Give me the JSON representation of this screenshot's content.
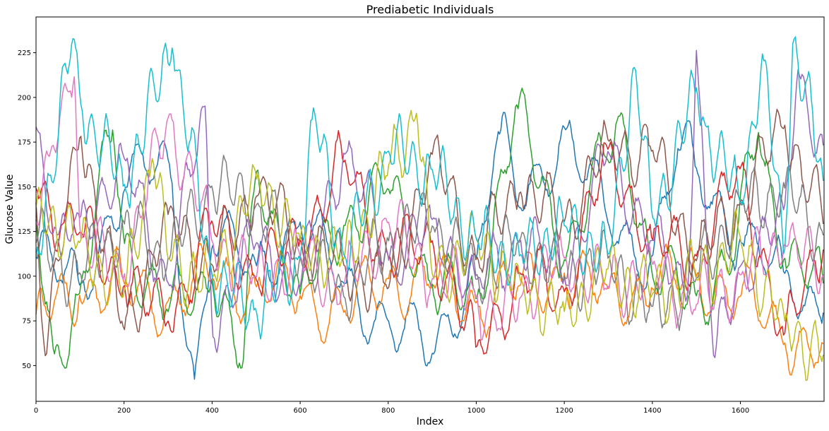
{
  "chart_data": {
    "type": "line",
    "title": "Prediabetic Individuals",
    "xlabel": "Index",
    "ylabel": "Glucose Value",
    "xlim": [
      0,
      1790
    ],
    "ylim": [
      30,
      245
    ],
    "xticks": [
      0,
      200,
      400,
      600,
      800,
      1000,
      1200,
      1400,
      1600
    ],
    "yticks": [
      50,
      75,
      100,
      125,
      150,
      175,
      200,
      225
    ],
    "grid": false,
    "legend": "none",
    "series_count": 10,
    "colors": [
      "#1f77b4",
      "#ff7f0e",
      "#2ca02c",
      "#d62728",
      "#9467bd",
      "#8c564b",
      "#e377c2",
      "#7f7f7f",
      "#bcbd22",
      "#17becf"
    ],
    "series_sampled": [
      {
        "x": [
          0,
          100,
          200,
          300,
          360,
          400,
          500,
          600,
          700,
          800,
          900,
          1000,
          1050,
          1100,
          1200,
          1300,
          1400,
          1460,
          1500,
          1600,
          1700,
          1790
        ],
        "values": [
          110,
          95,
          150,
          165,
          42,
          120,
          105,
          130,
          95,
          75,
          55,
          110,
          180,
          140,
          182,
          130,
          110,
          172,
          160,
          120,
          100,
          80
        ]
      },
      {
        "x": [
          0,
          100,
          200,
          300,
          400,
          500,
          600,
          700,
          800,
          900,
          1000,
          1100,
          1200,
          1300,
          1400,
          1500,
          1600,
          1700,
          1790
        ],
        "values": [
          80,
          90,
          95,
          85,
          100,
          95,
          90,
          80,
          100,
          95,
          85,
          95,
          100,
          90,
          95,
          100,
          90,
          65,
          62
        ]
      },
      {
        "x": [
          0,
          40,
          100,
          175,
          200,
          300,
          400,
          470,
          500,
          600,
          700,
          800,
          900,
          1000,
          1090,
          1200,
          1330,
          1400,
          1500,
          1580,
          1640,
          1700,
          1790
        ],
        "values": [
          130,
          55,
          90,
          183,
          120,
          80,
          100,
          48,
          160,
          90,
          130,
          150,
          95,
          85,
          195,
          110,
          190,
          100,
          90,
          105,
          182,
          110,
          95
        ]
      },
      {
        "x": [
          0,
          60,
          100,
          200,
          300,
          400,
          500,
          600,
          700,
          800,
          900,
          1000,
          1100,
          1200,
          1300,
          1400,
          1500,
          1600,
          1700,
          1790
        ],
        "values": [
          150,
          130,
          125,
          95,
          75,
          130,
          100,
          120,
          165,
          110,
          120,
          60,
          100,
          90,
          170,
          120,
          110,
          160,
          65,
          120
        ]
      },
      {
        "x": [
          0,
          50,
          100,
          200,
          300,
          385,
          400,
          500,
          600,
          700,
          800,
          900,
          1000,
          1100,
          1200,
          1300,
          1400,
          1480,
          1500,
          1540,
          1600,
          1700,
          1730,
          1790
        ],
        "values": [
          185,
          120,
          130,
          165,
          95,
          195,
          70,
          120,
          95,
          170,
          110,
          130,
          95,
          120,
          100,
          170,
          120,
          90,
          225,
          52,
          105,
          135,
          215,
          170
        ]
      },
      {
        "x": [
          0,
          20,
          100,
          200,
          300,
          400,
          500,
          600,
          700,
          800,
          900,
          1000,
          1100,
          1200,
          1300,
          1400,
          1500,
          1600,
          1700,
          1790
        ],
        "values": [
          140,
          55,
          182,
          70,
          135,
          105,
          148,
          120,
          105,
          95,
          170,
          110,
          150,
          130,
          175,
          170,
          110,
          140,
          185,
          130
        ]
      },
      {
        "x": [
          0,
          30,
          75,
          88,
          100,
          200,
          300,
          400,
          500,
          600,
          700,
          800,
          900,
          1000,
          1050,
          1100,
          1200,
          1300,
          1400,
          1500,
          1600,
          1700,
          1790
        ],
        "values": [
          130,
          165,
          205,
          215,
          120,
          100,
          190,
          120,
          100,
          110,
          95,
          130,
          100,
          90,
          70,
          90,
          110,
          95,
          105,
          85,
          100,
          120,
          100
        ]
      },
      {
        "x": [
          0,
          100,
          200,
          300,
          400,
          500,
          600,
          700,
          800,
          900,
          1000,
          1100,
          1200,
          1300,
          1400,
          1500,
          1600,
          1700,
          1790
        ],
        "values": [
          120,
          100,
          130,
          110,
          150,
          140,
          110,
          90,
          120,
          130,
          100,
          120,
          100,
          110,
          80,
          100,
          140,
          150,
          120
        ]
      },
      {
        "x": [
          0,
          100,
          200,
          265,
          300,
          400,
          500,
          600,
          700,
          800,
          865,
          900,
          1000,
          1100,
          1200,
          1300,
          1400,
          1500,
          1600,
          1700,
          1790
        ],
        "values": [
          140,
          120,
          90,
          168,
          110,
          100,
          155,
          120,
          110,
          160,
          192,
          100,
          120,
          95,
          80,
          105,
          90,
          100,
          120,
          75,
          55
        ]
      },
      {
        "x": [
          0,
          85,
          100,
          200,
          310,
          400,
          500,
          600,
          630,
          700,
          800,
          900,
          1000,
          1100,
          1200,
          1300,
          1360,
          1400,
          1500,
          1520,
          1600,
          1650,
          1700,
          1720,
          1790
        ],
        "values": [
          110,
          235,
          198,
          150,
          230,
          100,
          80,
          110,
          193,
          110,
          170,
          160,
          120,
          110,
          130,
          110,
          219,
          130,
          204,
          185,
          140,
          224,
          110,
          236,
          150
        ]
      }
    ]
  }
}
